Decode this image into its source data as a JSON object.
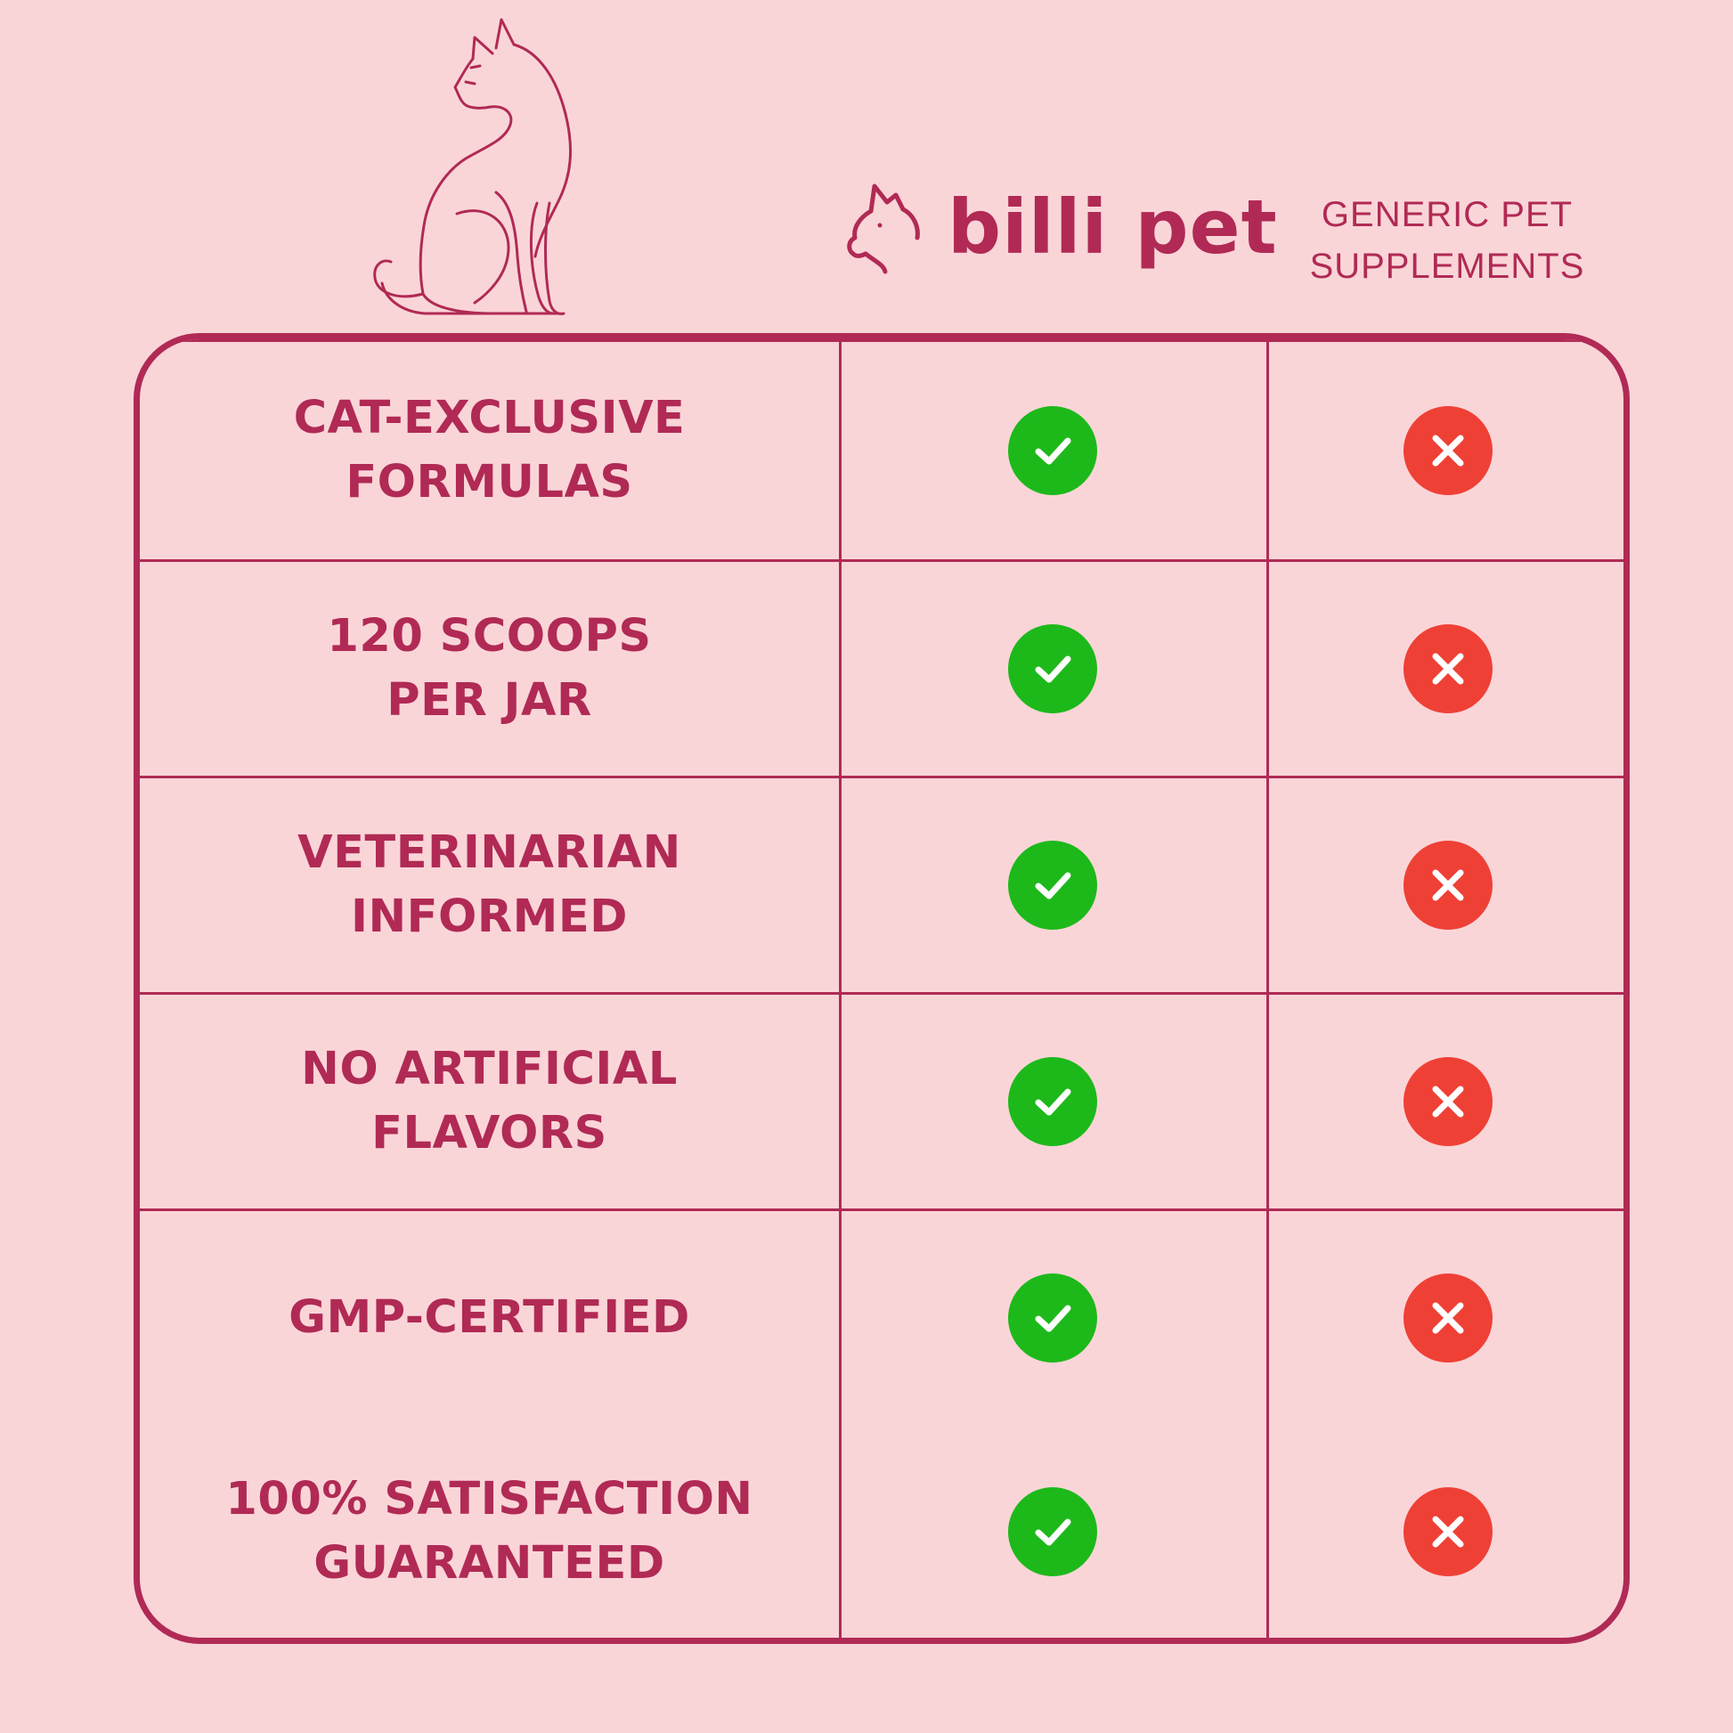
{
  "brand": {
    "name": "billi pet",
    "logo_icon": "cat-head-icon"
  },
  "competitor": {
    "label_line1": "GENERIC PET",
    "label_line2": "SUPPLEMENTS"
  },
  "illustration": {
    "icon": "sitting-cat-icon"
  },
  "colors": {
    "background": "#fad5d8",
    "accent": "#b02a55",
    "check": "#1db91a",
    "cross": "#ef4036"
  },
  "rows": [
    {
      "label": "CAT-EXCLUSIVE\nFORMULAS",
      "brand_status": "check",
      "generic_status": "cross"
    },
    {
      "label": "120 SCOOPS\nPER JAR",
      "brand_status": "check",
      "generic_status": "cross"
    },
    {
      "label": "VETERINARIAN\nINFORMED",
      "brand_status": "check",
      "generic_status": "cross"
    },
    {
      "label": "NO ARTIFICIAL\nFLAVORS",
      "brand_status": "check",
      "generic_status": "cross"
    },
    {
      "label": "GMP-CERTIFIED",
      "brand_status": "check",
      "generic_status": "cross"
    },
    {
      "label": "100% SATISFACTION\nGUARANTEED",
      "brand_status": "check",
      "generic_status": "cross"
    }
  ]
}
